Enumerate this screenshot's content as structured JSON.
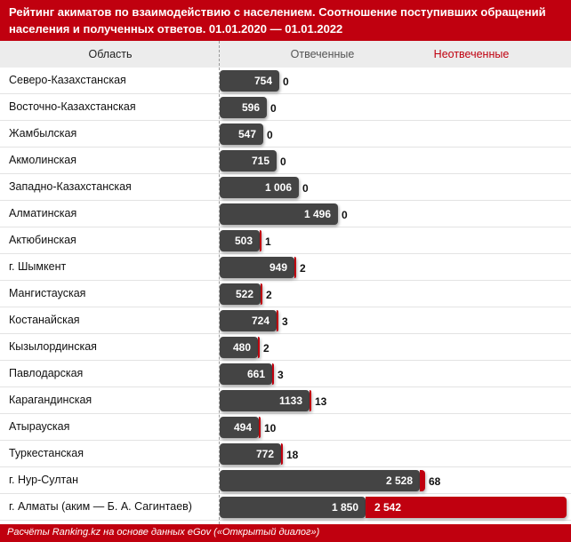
{
  "header": {
    "title_line1": "Рейтинг акиматов по взаимодействию с населением. Соотношение поступивших обращений",
    "title_line2": "населения и полученных ответов. 01.01.2020 — 01.01.2022"
  },
  "columns": {
    "region": "Область",
    "answered": "Отвеченные",
    "unanswered": "Неотвеченные"
  },
  "footer": "Расчёты Ranking.kz на основе данных eGov («Открытый диалог»)",
  "colors": {
    "answered": "#444444",
    "unanswered": "#c0000f",
    "header": "#c0000f"
  },
  "chart_data": {
    "type": "bar",
    "orientation": "horizontal",
    "stacked": true,
    "categories": [
      "Северо-Казахстанская",
      "Восточно-Казахстанская",
      "Жамбылская",
      "Акмолинская",
      "Западно-Казахстанская",
      "Алматинская",
      "Актюбинская",
      "г. Шымкент",
      "Мангистауская",
      "Костанайская",
      "Кызылординская",
      "Павлодарская",
      "Карагандинская",
      "Атырауская",
      "Туркестанская",
      "г. Нур-Султан",
      "г. Алматы (аким — Б. А. Сагинтаев)"
    ],
    "series": [
      {
        "name": "Отвеченные",
        "values": [
          754,
          596,
          547,
          715,
          1006,
          1496,
          503,
          949,
          522,
          724,
          480,
          661,
          1133,
          494,
          772,
          2528,
          1850
        ],
        "labels": [
          "754",
          "596",
          "547",
          "715",
          "1 006",
          "1 496",
          "503",
          "949",
          "522",
          "724",
          "480",
          "661",
          "1133",
          "494",
          "772",
          "2 528",
          "1 850"
        ]
      },
      {
        "name": "Неотвеченные",
        "values": [
          0,
          0,
          0,
          0,
          0,
          0,
          1,
          2,
          2,
          3,
          2,
          3,
          13,
          10,
          18,
          68,
          2542
        ],
        "labels": [
          "0",
          "0",
          "0",
          "0",
          "0",
          "0",
          "1",
          "2",
          "2",
          "3",
          "2",
          "3",
          "13",
          "10",
          "18",
          "68",
          "2 542"
        ]
      }
    ]
  }
}
